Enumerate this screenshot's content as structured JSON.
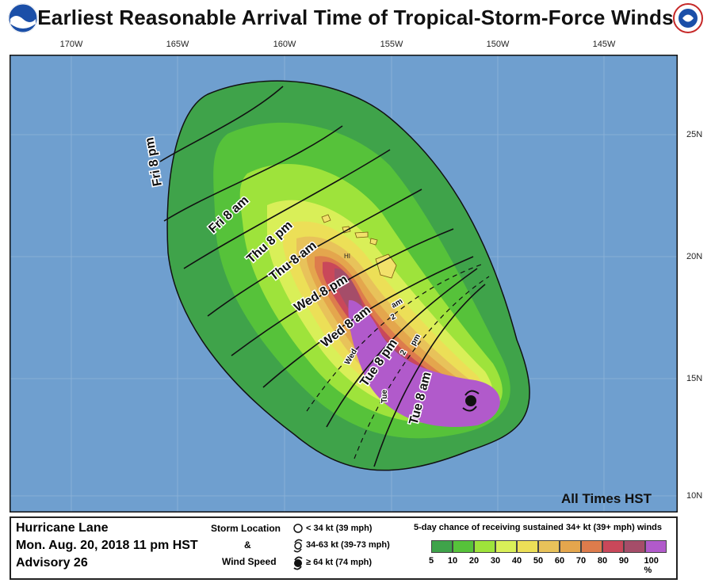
{
  "title": "Earliest Reasonable Arrival Time of Tropical-Storm-Force Winds",
  "logos": {
    "left": "noaa-logo",
    "right": "national-weather-service-logo"
  },
  "map": {
    "longitude_labels": [
      "170W",
      "165W",
      "160W",
      "155W",
      "150W",
      "145W"
    ],
    "latitude_labels": [
      "25N",
      "20N",
      "15N",
      "10N"
    ],
    "hawaii_label": "HI",
    "ocean_color": "#6f9fcf",
    "isochrone_labels": [
      {
        "text": "Fri 8 pm"
      },
      {
        "text": "Fri 8 am"
      },
      {
        "text": "Thu 8 pm"
      },
      {
        "text": "Thu 8 am"
      },
      {
        "text": "Wed 8 pm"
      },
      {
        "text": "Wed 8 am"
      },
      {
        "text": "Wed 2 am"
      },
      {
        "text": "Tue 8 pm"
      },
      {
        "text": "Tue 2 pm"
      },
      {
        "text": "Tue 8 am"
      }
    ],
    "small_labels": [
      {
        "text": "Wed"
      },
      {
        "text": "2"
      },
      {
        "text": "am"
      },
      {
        "text": "Tue"
      },
      {
        "text": "2"
      },
      {
        "text": "pm"
      }
    ],
    "note": "All Times HST"
  },
  "legend": {
    "storm_name": "Hurricane Lane",
    "issued": "Mon. Aug. 20, 2018  11 pm HST",
    "advisory": "Advisory 26",
    "storm_location_label": "Storm Location",
    "ampersand": "&",
    "wind_speed_label": "Wind Speed",
    "wind_items": [
      "< 34 kt (39 mph)",
      "34-63 kt (39-73 mph)",
      "≥ 64 kt (74 mph)"
    ],
    "chance_title": "5-day chance of receiving sustained 34+ kt (39+ mph) winds",
    "percent_labels": [
      "5",
      "10",
      "20",
      "30",
      "40",
      "50",
      "60",
      "70",
      "80",
      "90",
      "100 %"
    ],
    "scale_colors": [
      "#3fa34a",
      "#56c23a",
      "#9ee33b",
      "#d9ef58",
      "#ecdf57",
      "#e8c25a",
      "#e4a64d",
      "#dd7c4c",
      "#c9485a",
      "#a54d69",
      "#b15acb"
    ]
  }
}
